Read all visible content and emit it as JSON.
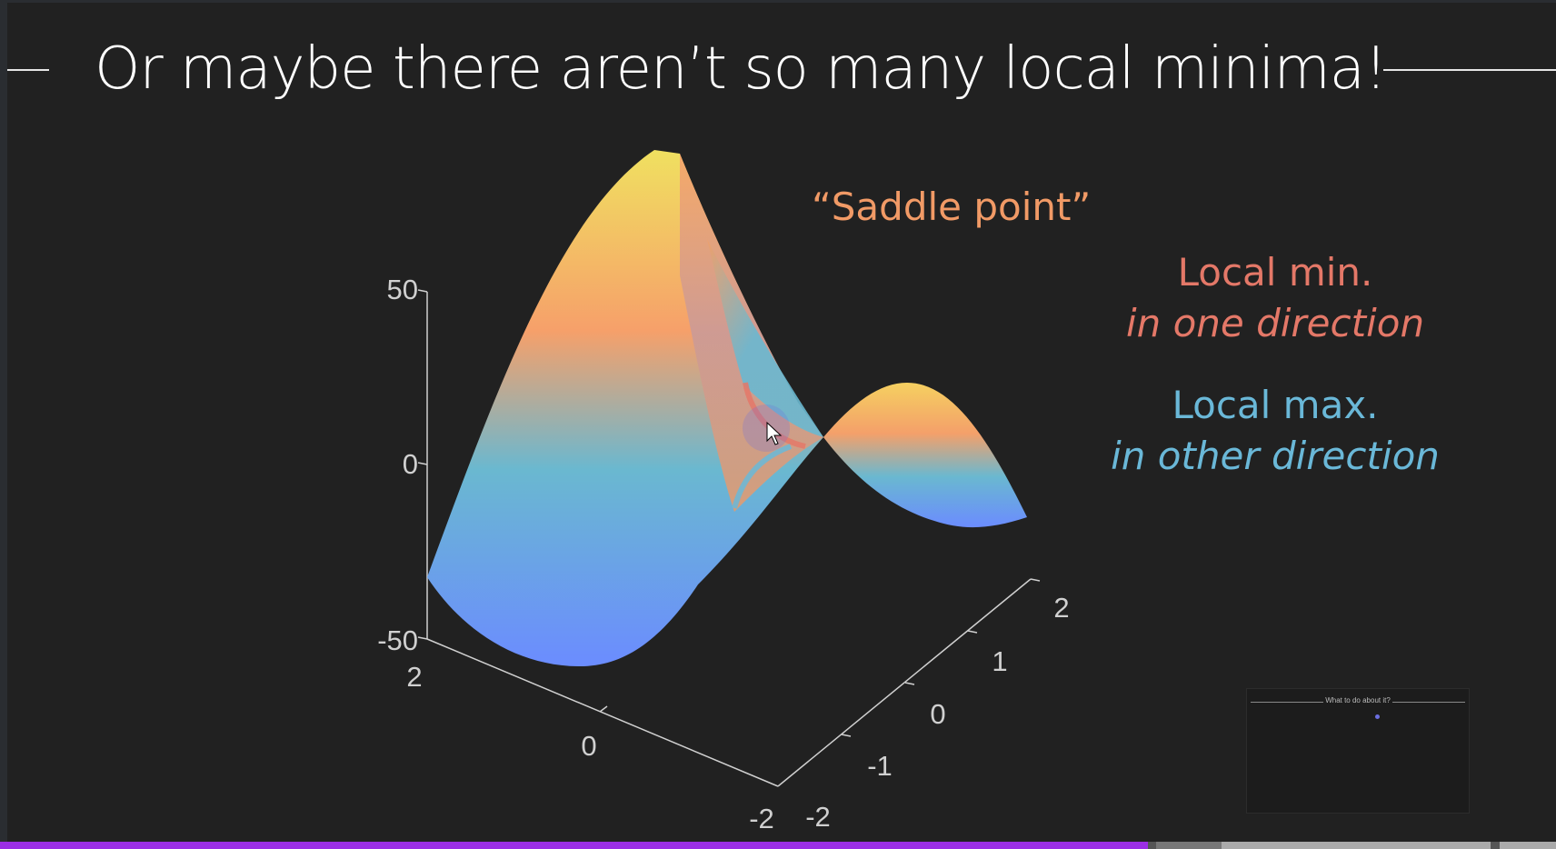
{
  "slide": {
    "title": "Or maybe there aren’t so many local minima!",
    "annotations": {
      "saddle": "“Saddle point”",
      "local_min": "Local min.",
      "min_direction": "in one direction",
      "local_max": "Local max.",
      "max_direction": "in other direction"
    },
    "colors": {
      "background": "#212121",
      "saddle": "#f19a66",
      "local_min": "#e47868",
      "local_max": "#6ab8d8",
      "progress": "#9b2ee5"
    },
    "icons": [
      "cursor-icon"
    ]
  },
  "chart_data": {
    "type": "surface",
    "function": "saddle",
    "z_ticks": [
      "50",
      "0",
      "-50"
    ],
    "x_ticks": [
      "2",
      "0",
      "-2"
    ],
    "y_ticks": [
      "2",
      "1",
      "0",
      "-1",
      "-2"
    ],
    "zlim": [
      -50,
      50
    ],
    "xlim": [
      -2,
      2
    ],
    "ylim": [
      -2,
      2
    ],
    "colormap": [
      "#6b8cff",
      "#6ab8d0",
      "#f6a06a",
      "#f0e060"
    ],
    "grid": false
  },
  "thumbnail": {
    "title": "What to do about it?"
  },
  "progress": {
    "value": 0.738
  }
}
